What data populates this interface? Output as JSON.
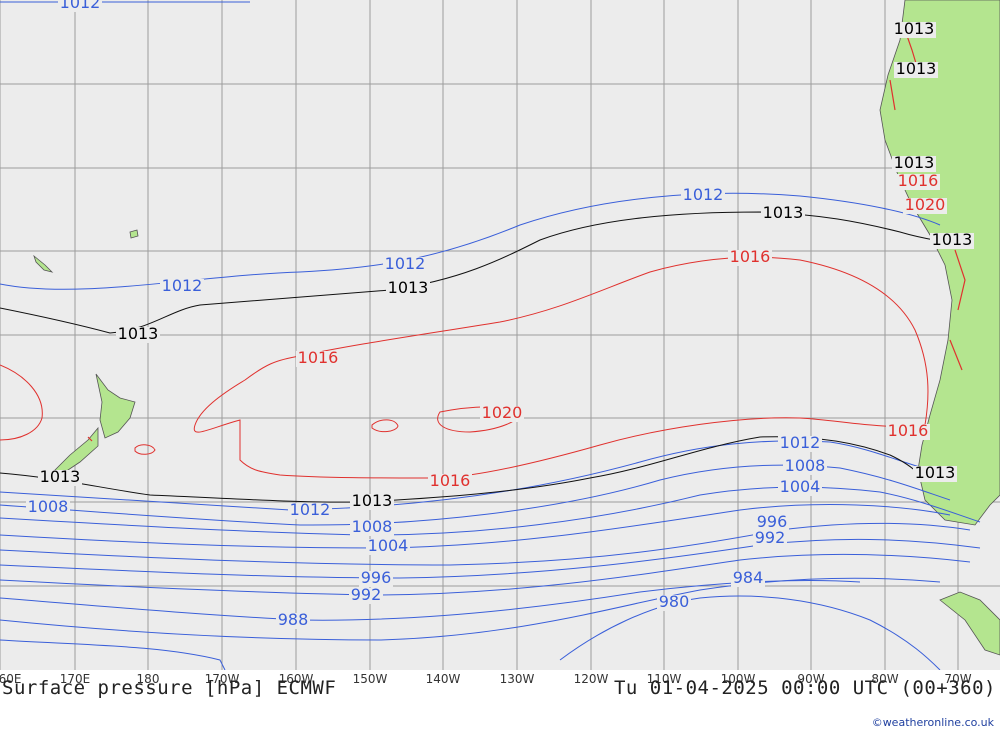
{
  "map": {
    "title": "Surface pressure [hPa] ECMWF",
    "valid_time": "Tu 01-04-2025 00:00 UTC (00+360)",
    "credit": "©weatheronline.co.uk",
    "colors": {
      "background": "#ececec",
      "land": "#b4e58f",
      "isobar_low": "#3a5fd9",
      "isobar_mid": "#000000",
      "isobar_high": "#e0312e",
      "grid": "#9c9c9c"
    },
    "longitude_labels": [
      "60E",
      "170E",
      "180",
      "170W",
      "160W",
      "150W",
      "140W",
      "130W",
      "120W",
      "110W",
      "100W",
      "90W",
      "80W",
      "70W"
    ],
    "isobar_labels": [
      {
        "id": "l1012-tl",
        "text": "1012",
        "color": "low"
      },
      {
        "id": "l1012-a",
        "text": "1012",
        "color": "low"
      },
      {
        "id": "l1012-b",
        "text": "1012",
        "color": "low"
      },
      {
        "id": "l1012-c",
        "text": "1012",
        "color": "low"
      },
      {
        "id": "l1013-a",
        "text": "1013",
        "color": "mid"
      },
      {
        "id": "l1013-b",
        "text": "1013",
        "color": "mid"
      },
      {
        "id": "l1013-c",
        "text": "1013",
        "color": "mid"
      },
      {
        "id": "l1013-d",
        "text": "1013",
        "color": "mid"
      },
      {
        "id": "l1016-a",
        "text": "1016",
        "color": "high"
      },
      {
        "id": "l1016-b",
        "text": "1016",
        "color": "high"
      },
      {
        "id": "l1016-c",
        "text": "1016",
        "color": "high"
      },
      {
        "id": "l1020",
        "text": "1020",
        "color": "high"
      },
      {
        "id": "l1013-e",
        "text": "1013",
        "color": "mid"
      },
      {
        "id": "l1012-d",
        "text": "1012",
        "color": "low"
      },
      {
        "id": "l1012-e",
        "text": "1012",
        "color": "low"
      },
      {
        "id": "l1008-a",
        "text": "1008",
        "color": "low"
      },
      {
        "id": "l1008-b",
        "text": "1008",
        "color": "low"
      },
      {
        "id": "l1008-c",
        "text": "1008",
        "color": "low"
      },
      {
        "id": "l1004-a",
        "text": "1004",
        "color": "low"
      },
      {
        "id": "l1004-b",
        "text": "1004",
        "color": "low"
      },
      {
        "id": "l996-a",
        "text": "996",
        "color": "low"
      },
      {
        "id": "l996-b",
        "text": "996",
        "color": "low"
      },
      {
        "id": "l992-a",
        "text": "992",
        "color": "low"
      },
      {
        "id": "l992-b",
        "text": "992",
        "color": "low"
      },
      {
        "id": "l988",
        "text": "988",
        "color": "low"
      },
      {
        "id": "l984",
        "text": "984",
        "color": "low"
      },
      {
        "id": "l980",
        "text": "980",
        "color": "low"
      },
      {
        "id": "l1013-f",
        "text": "1013",
        "color": "mid"
      },
      {
        "id": "l1013-g",
        "text": "1013",
        "color": "mid"
      },
      {
        "id": "l1013-h",
        "text": "1013",
        "color": "mid"
      },
      {
        "id": "l1013-i",
        "text": "1013",
        "color": "mid"
      },
      {
        "id": "l1013-j",
        "text": "1013",
        "color": "mid"
      },
      {
        "id": "l1016-d",
        "text": "1016",
        "color": "high"
      },
      {
        "id": "l1020-b",
        "text": "1020",
        "color": "high"
      },
      {
        "id": "l1016-e",
        "text": "1016",
        "color": "high"
      }
    ]
  }
}
